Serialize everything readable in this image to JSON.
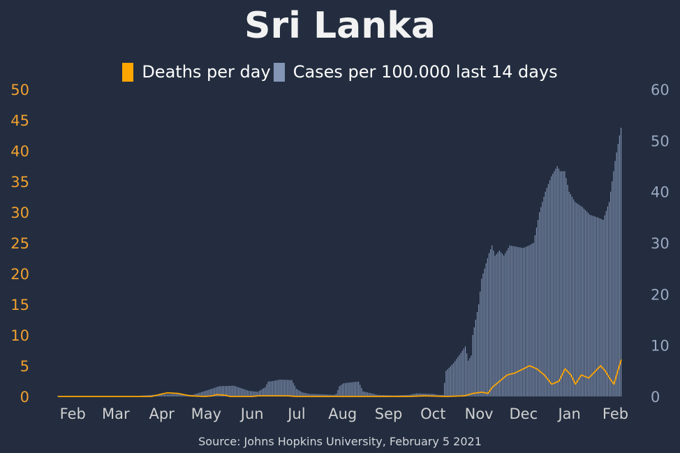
{
  "chart_data": {
    "title": "Sri Lanka",
    "type": "bar+line",
    "source": "Source: Johns Hopkins University, February 5 2021",
    "colors": {
      "deaths": "#ffa500",
      "cases": "#8496b6",
      "background": "#232d3f",
      "left_axis": "#f0a030",
      "right_axis": "#9aa8c2",
      "x_axis": "#d0d0d0"
    },
    "legend": [
      {
        "name": "Deaths per day",
        "color": "#ffa500"
      },
      {
        "name": "Cases per 100.000 last 14 days",
        "color": "#8496b6"
      }
    ],
    "x_ticks": [
      "Feb",
      "Mar",
      "Apr",
      "May",
      "Jun",
      "Jul",
      "Aug",
      "Sep",
      "Oct",
      "Nov",
      "Dec",
      "Jan",
      "Feb"
    ],
    "y_left": {
      "range": [
        0,
        50
      ],
      "ticks": [
        "0",
        "5",
        "10",
        "15",
        "20",
        "25",
        "30",
        "35",
        "40",
        "45",
        "50"
      ]
    },
    "y_right": {
      "range": [
        0,
        60
      ],
      "ticks": [
        "0",
        "10",
        "20",
        "30",
        "40",
        "50",
        "60"
      ]
    },
    "x_range": [
      "2020-01-22",
      "2021-02-05"
    ],
    "cases_per_100k_14d": [
      [
        "2020-01-22",
        0
      ],
      [
        "2020-03-10",
        0
      ],
      [
        "2020-03-25",
        0.3
      ],
      [
        "2020-04-10",
        0.5
      ],
      [
        "2020-04-22",
        0.3
      ],
      [
        "2020-05-05",
        1.5
      ],
      [
        "2020-05-10",
        2.0
      ],
      [
        "2020-05-20",
        2.1
      ],
      [
        "2020-05-25",
        1.6
      ],
      [
        "2020-05-30",
        1.1
      ],
      [
        "2020-06-05",
        0.9
      ],
      [
        "2020-06-10",
        1.8
      ],
      [
        "2020-06-12",
        2.9
      ],
      [
        "2020-06-15",
        3.0
      ],
      [
        "2020-06-20",
        3.3
      ],
      [
        "2020-06-28",
        3.2
      ],
      [
        "2020-07-01",
        1.5
      ],
      [
        "2020-07-05",
        0.8
      ],
      [
        "2020-07-10",
        0.5
      ],
      [
        "2020-07-20",
        0.4
      ],
      [
        "2020-07-26",
        0.3
      ],
      [
        "2020-07-28",
        0.5
      ],
      [
        "2020-07-30",
        2.0
      ],
      [
        "2020-08-02",
        2.6
      ],
      [
        "2020-08-12",
        2.9
      ],
      [
        "2020-08-15",
        1.0
      ],
      [
        "2020-08-25",
        0.3
      ],
      [
        "2020-09-05",
        0.2
      ],
      [
        "2020-09-15",
        0.3
      ],
      [
        "2020-09-20",
        0.6
      ],
      [
        "2020-10-01",
        0.5
      ],
      [
        "2020-10-05",
        0.3
      ],
      [
        "2020-10-08",
        0.3
      ],
      [
        "2020-10-10",
        5.0
      ],
      [
        "2020-10-15",
        6.5
      ],
      [
        "2020-10-20",
        8.5
      ],
      [
        "2020-10-23",
        9.8
      ],
      [
        "2020-10-25",
        7.0
      ],
      [
        "2020-10-27",
        8.0
      ],
      [
        "2020-10-28",
        12.0
      ],
      [
        "2020-11-01",
        18.0
      ],
      [
        "2020-11-03",
        23.0
      ],
      [
        "2020-11-08",
        28.0
      ],
      [
        "2020-11-10",
        29.5
      ],
      [
        "2020-11-12",
        27.5
      ],
      [
        "2020-11-15",
        28.5
      ],
      [
        "2020-11-18",
        27.5
      ],
      [
        "2020-11-22",
        29.5
      ],
      [
        "2020-12-01",
        29.0
      ],
      [
        "2020-12-05",
        29.5
      ],
      [
        "2020-12-08",
        30.0
      ],
      [
        "2020-12-12",
        36.0
      ],
      [
        "2020-12-16",
        40.0
      ],
      [
        "2020-12-20",
        43.0
      ],
      [
        "2020-12-24",
        45.0
      ],
      [
        "2020-12-26",
        44.0
      ],
      [
        "2020-12-29",
        44.0
      ],
      [
        "2021-01-01",
        40.0
      ],
      [
        "2021-01-05",
        38.0
      ],
      [
        "2021-01-10",
        37.0
      ],
      [
        "2021-01-15",
        35.5
      ],
      [
        "2021-01-20",
        35.0
      ],
      [
        "2021-01-24",
        34.5
      ],
      [
        "2021-01-28",
        38.0
      ],
      [
        "2021-02-01",
        46.0
      ],
      [
        "2021-02-04",
        51.0
      ],
      [
        "2021-02-05",
        52.5
      ]
    ],
    "deaths_per_day": [
      [
        "2020-01-22",
        0
      ],
      [
        "2020-03-25",
        0
      ],
      [
        "2020-04-01",
        0.4
      ],
      [
        "2020-04-05",
        0.6
      ],
      [
        "2020-04-12",
        0.5
      ],
      [
        "2020-04-20",
        0.1
      ],
      [
        "2020-04-30",
        0
      ],
      [
        "2020-05-05",
        0.1
      ],
      [
        "2020-05-08",
        0.3
      ],
      [
        "2020-05-14",
        0.2
      ],
      [
        "2020-05-17",
        0
      ],
      [
        "2020-06-01",
        0
      ],
      [
        "2020-06-05",
        0.1
      ],
      [
        "2020-06-25",
        0.1
      ],
      [
        "2020-07-01",
        0
      ],
      [
        "2020-09-15",
        0
      ],
      [
        "2020-09-25",
        0.1
      ],
      [
        "2020-10-10",
        0
      ],
      [
        "2020-10-22",
        0.1
      ],
      [
        "2020-10-28",
        0.5
      ],
      [
        "2020-11-03",
        0.7
      ],
      [
        "2020-11-07",
        0.5
      ],
      [
        "2020-11-10",
        1.5
      ],
      [
        "2020-11-15",
        2.5
      ],
      [
        "2020-11-20",
        3.5
      ],
      [
        "2020-11-25",
        3.8
      ],
      [
        "2020-12-01",
        4.5
      ],
      [
        "2020-12-05",
        5.0
      ],
      [
        "2020-12-10",
        4.5
      ],
      [
        "2020-12-15",
        3.5
      ],
      [
        "2020-12-20",
        2.0
      ],
      [
        "2020-12-25",
        2.5
      ],
      [
        "2020-12-29",
        4.5
      ],
      [
        "2021-01-02",
        3.5
      ],
      [
        "2021-01-05",
        2.0
      ],
      [
        "2021-01-09",
        3.5
      ],
      [
        "2021-01-14",
        3.0
      ],
      [
        "2021-01-18",
        4.0
      ],
      [
        "2021-01-22",
        5.0
      ],
      [
        "2021-01-25",
        4.2
      ],
      [
        "2021-01-28",
        3.0
      ],
      [
        "2021-01-31",
        2.0
      ],
      [
        "2021-02-03",
        4.5
      ],
      [
        "2021-02-05",
        6.0
      ]
    ]
  }
}
